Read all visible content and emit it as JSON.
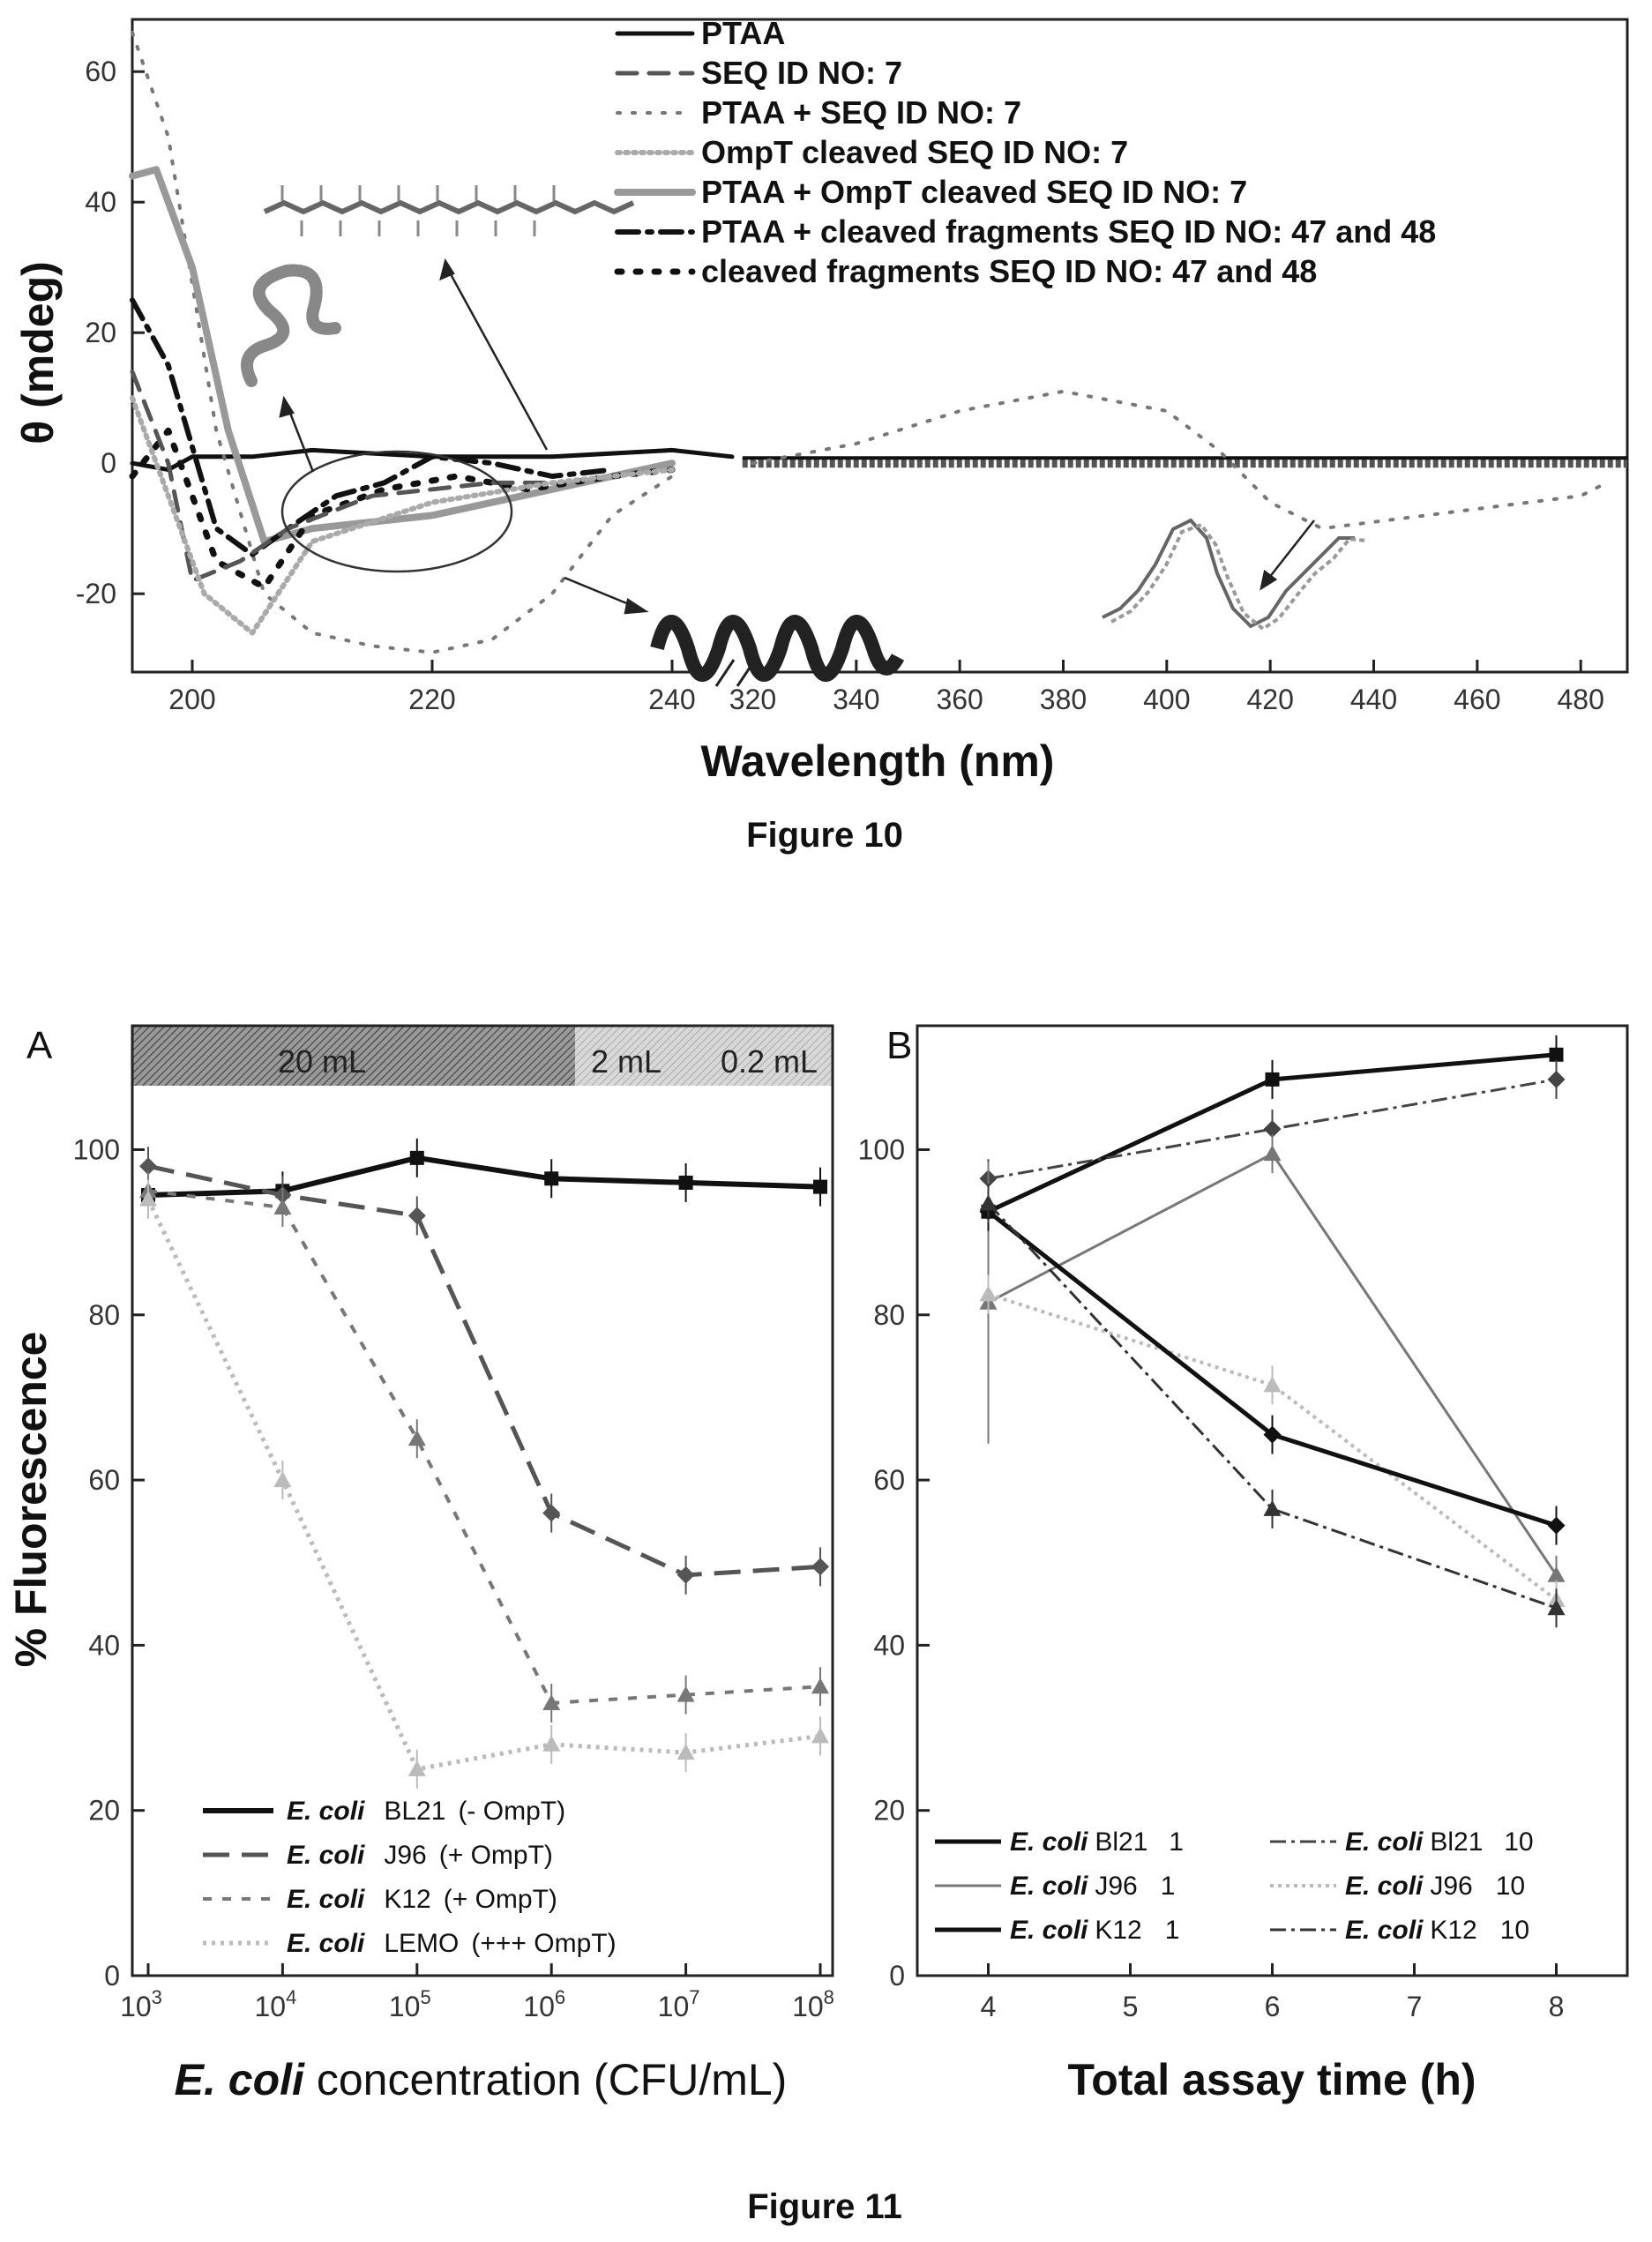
{
  "figure10": {
    "caption": "Figure 10",
    "chart_data": {
      "type": "line",
      "xlabel": "Wavelength (nm)",
      "ylabel": "θ (mdeg)",
      "ylim": [
        -32,
        68
      ],
      "x_ticks_left": [
        "200",
        "220",
        "240"
      ],
      "x_ticks_right": [
        "320",
        "340",
        "360",
        "380",
        "400",
        "420",
        "440",
        "460",
        "480"
      ],
      "y_ticks": [
        "-20",
        "0",
        "20",
        "40",
        "60"
      ],
      "break": "240 | 320",
      "legend": [
        {
          "name": "PTAA",
          "style": "solid"
        },
        {
          "name": "SEQ ID NO: 7",
          "style": "dash-gray"
        },
        {
          "name": "PTAA + SEQ ID NO: 7",
          "style": "dot-gray"
        },
        {
          "name": "OmpT cleaved SEQ ID NO: 7",
          "style": "dot-light"
        },
        {
          "name": "PTAA + OmpT cleaved SEQ ID NO: 7",
          "style": "hatch"
        },
        {
          "name": "PTAA + cleaved fragments SEQ ID NO: 47 and 48",
          "style": "dashdot"
        },
        {
          "name": "cleaved fragments SEQ ID NO: 47 and 48",
          "style": "dot-bold"
        }
      ],
      "series": [
        {
          "name": "PTAA",
          "x": [
            195,
            198,
            200,
            205,
            210,
            220,
            230,
            240,
            245
          ],
          "y": [
            0,
            -1,
            1,
            1,
            2,
            1,
            1,
            2,
            1
          ]
        },
        {
          "name": "PTAA + SEQ ID NO: 7",
          "x": [
            195,
            198,
            202,
            206,
            210,
            215,
            220,
            225,
            230,
            235,
            240
          ],
          "y": [
            66,
            50,
            5,
            -20,
            -26,
            -28,
            -29,
            -27,
            -20,
            -8,
            -2
          ]
        },
        {
          "name": "PTAA + OmpT cleaved SEQ ID NO: 7",
          "x": [
            195,
            197,
            200,
            203,
            206,
            210,
            220,
            230,
            240
          ],
          "y": [
            44,
            45,
            30,
            5,
            -12,
            -10,
            -8,
            -4,
            0
          ]
        },
        {
          "name": "PTAA + cleaved fragments SEQ ID NO: 47 and 48",
          "x": [
            195,
            198,
            202,
            205,
            208,
            212,
            216,
            220,
            225,
            230,
            235
          ],
          "y": [
            25,
            15,
            -10,
            -14,
            -10,
            -5,
            -3,
            1,
            0,
            -2,
            -1
          ]
        },
        {
          "name": "cleaved fragments SEQ ID NO: 47 and 48",
          "x": [
            195,
            198,
            202,
            206,
            210,
            216,
            222,
            228,
            235,
            240
          ],
          "y": [
            -2,
            5,
            -15,
            -19,
            -8,
            -4,
            -2,
            -4,
            -2,
            -1
          ]
        },
        {
          "name": "SEQ ID NO: 7",
          "x": [
            195,
            198,
            200,
            204,
            208,
            215,
            220,
            225,
            230
          ],
          "y": [
            14,
            0,
            -18,
            -15,
            -10,
            -5,
            -4,
            -3,
            -3
          ]
        },
        {
          "name": "OmpT cleaved SEQ ID NO: 7",
          "x": [
            195,
            198,
            201,
            205,
            210,
            220,
            230,
            240
          ],
          "y": [
            10,
            -5,
            -20,
            -26,
            -12,
            -6,
            -3,
            -1
          ]
        },
        {
          "name": "PTAA + SEQ ID NO: 7 (visible)",
          "x": [
            320,
            340,
            360,
            380,
            400,
            410,
            420,
            430,
            440,
            460,
            480,
            485
          ],
          "y": [
            0,
            3,
            8,
            11,
            8,
            2,
            -6,
            -10,
            -9,
            -7,
            -5,
            -3
          ]
        }
      ]
    }
  },
  "figure11": {
    "caption": "Figure 11",
    "panelA": {
      "letter": "A",
      "band": {
        "labels": [
          "20 mL",
          "2 mL",
          "0.2 mL"
        ]
      },
      "chart_data": {
        "type": "line",
        "xlabel_italic": "E. coli",
        "xlabel_rest": " concentration (CFU/mL)",
        "ylabel": "% Fluorescence",
        "x_scale": "log",
        "x": [
          1000,
          10000,
          100000,
          1000000,
          10000000,
          100000000
        ],
        "x_tick_labels": [
          {
            "base": "10",
            "exp": "3"
          },
          {
            "base": "10",
            "exp": "4"
          },
          {
            "base": "10",
            "exp": "5"
          },
          {
            "base": "10",
            "exp": "6"
          },
          {
            "base": "10",
            "exp": "7"
          },
          {
            "base": "10",
            "exp": "8"
          }
        ],
        "y_ticks": [
          "0",
          "20",
          "40",
          "60",
          "80",
          "100"
        ],
        "ylim": [
          0,
          115
        ],
        "series": [
          {
            "name": "E. coli BL21 (- OmpT)",
            "y": [
              94.5,
              95,
              99,
              96.5,
              96,
              95.5
            ]
          },
          {
            "name": "E. coli J96 (+ OmpT)",
            "y": [
              98,
              94.5,
              92,
              56,
              48.5,
              49.5
            ]
          },
          {
            "name": "E. coli K12 (+ OmpT)",
            "y": [
              95,
              93,
              65,
              33,
              34,
              35
            ]
          },
          {
            "name": "E. coli LEMO (+++ OmpT)",
            "y": [
              94,
              60,
              25,
              28,
              27,
              29
            ]
          }
        ],
        "legend": [
          {
            "italic": "E. coli",
            "strain": "BL21",
            "note": "(- OmpT)"
          },
          {
            "italic": "E. coli",
            "strain": "J96",
            "note": "(+ OmpT)"
          },
          {
            "italic": "E. coli",
            "strain": "K12",
            "note": "(+ OmpT)"
          },
          {
            "italic": "E. coli",
            "strain": "LEMO",
            "note": "(+++ OmpT)"
          }
        ]
      }
    },
    "panelB": {
      "letter": "B",
      "chart_data": {
        "type": "line",
        "xlabel": "Total assay time (h)",
        "x_ticks": [
          "4",
          "5",
          "6",
          "7",
          "8"
        ],
        "y_ticks": [
          "0",
          "20",
          "40",
          "60",
          "80",
          "100"
        ],
        "xlim": [
          3.5,
          8.5
        ],
        "ylim": [
          0,
          115
        ],
        "x": [
          4,
          6,
          8
        ],
        "series": [
          {
            "name": "E. coli Bl21 1",
            "y": [
              92.5,
              108.5,
              111.5
            ]
          },
          {
            "name": "E. coli Bl21 10",
            "y": [
              96.5,
              102.5,
              108.5
            ]
          },
          {
            "name": "E. coli J96 1",
            "y": [
              81.5,
              99.5,
              48.5
            ]
          },
          {
            "name": "E. coli J96 10",
            "y": [
              82.5,
              71.5,
              45.5
            ]
          },
          {
            "name": "E. coli K12 1",
            "y": [
              92.5,
              65.5,
              54.5
            ]
          },
          {
            "name": "E. coli K12 10",
            "y": [
              93.5,
              56.5,
              44.5
            ]
          }
        ],
        "legend": [
          {
            "italic": "E. coli",
            "strain": "Bl21",
            "dose": "1"
          },
          {
            "italic": "E. coli",
            "strain": "Bl21",
            "dose": "10"
          },
          {
            "italic": "E. coli",
            "strain": "J96",
            "dose": "1"
          },
          {
            "italic": "E. coli",
            "strain": "J96",
            "dose": "10"
          },
          {
            "italic": "E. coli",
            "strain": "K12",
            "dose": "1"
          },
          {
            "italic": "E. coli",
            "strain": "K12",
            "dose": "10"
          }
        ]
      }
    }
  }
}
